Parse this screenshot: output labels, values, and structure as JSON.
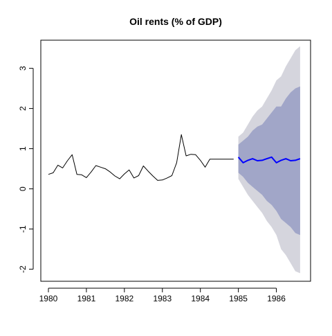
{
  "chart_data": {
    "type": "line",
    "title": "Oil rents (% of GDP)",
    "xlabel": "",
    "ylabel": "",
    "xlim": [
      1979.8,
      1986.9
    ],
    "ylim": [
      -2.3,
      3.7
    ],
    "grid": false,
    "x_ticks": [
      1980,
      1981,
      1982,
      1983,
      1984,
      1985,
      1986
    ],
    "x_tick_labels": [
      "1980",
      "1981",
      "1982",
      "1983",
      "1984",
      "1985",
      "1986"
    ],
    "y_ticks": [
      -2,
      -1,
      0,
      1,
      2,
      3
    ],
    "y_tick_labels": [
      "-2",
      "-1",
      "0",
      "1",
      "2",
      "3"
    ],
    "series": [
      {
        "role": "history",
        "color": "#000000",
        "x": [
          1980.0,
          1980.125,
          1980.25,
          1980.375,
          1980.5,
          1980.625,
          1980.75,
          1980.875,
          1981.0,
          1981.125,
          1981.25,
          1981.375,
          1981.5,
          1981.625,
          1981.75,
          1981.875,
          1982.0,
          1982.125,
          1982.25,
          1982.375,
          1982.5,
          1982.625,
          1982.75,
          1982.875,
          1983.0,
          1983.125,
          1983.25,
          1983.375,
          1983.5,
          1983.625,
          1983.75,
          1983.875,
          1984.0,
          1984.125,
          1984.25,
          1984.375,
          1984.5,
          1984.625,
          1984.75,
          1984.875
        ],
        "values": [
          0.36,
          0.4,
          0.59,
          0.52,
          0.7,
          0.85,
          0.36,
          0.35,
          0.28,
          0.42,
          0.58,
          0.54,
          0.5,
          0.42,
          0.32,
          0.25,
          0.37,
          0.47,
          0.27,
          0.33,
          0.57,
          0.44,
          0.32,
          0.21,
          0.22,
          0.27,
          0.33,
          0.65,
          1.35,
          0.82,
          0.86,
          0.85,
          0.71,
          0.54,
          0.74,
          0.74,
          0.74,
          0.74,
          0.74,
          0.74
        ]
      },
      {
        "role": "forecast",
        "color": "#0000ff",
        "x": [
          1985.0,
          1985.125,
          1985.25,
          1985.375,
          1985.5,
          1985.625,
          1985.75,
          1985.875,
          1986.0,
          1986.125,
          1986.25,
          1986.375,
          1986.5,
          1986.625
        ],
        "values": [
          0.79,
          0.65,
          0.71,
          0.75,
          0.7,
          0.71,
          0.75,
          0.79,
          0.65,
          0.71,
          0.75,
          0.7,
          0.71,
          0.75
        ]
      }
    ],
    "intervals": [
      {
        "level": "95",
        "color": "#d5d5dd",
        "x": [
          1985.0,
          1985.125,
          1985.25,
          1985.375,
          1985.5,
          1985.625,
          1985.75,
          1985.875,
          1986.0,
          1986.125,
          1986.25,
          1986.375,
          1986.5,
          1986.625
        ],
        "lower": [
          0.25,
          0.05,
          -0.15,
          -0.3,
          -0.45,
          -0.6,
          -0.8,
          -0.95,
          -1.15,
          -1.5,
          -1.65,
          -1.85,
          -2.05,
          -2.1
        ],
        "upper": [
          1.3,
          1.4,
          1.6,
          1.8,
          1.95,
          2.05,
          2.25,
          2.45,
          2.7,
          2.8,
          3.05,
          3.25,
          3.45,
          3.55
        ]
      },
      {
        "level": "80",
        "color": "#a1a6c8",
        "x": [
          1985.0,
          1985.125,
          1985.25,
          1985.375,
          1985.5,
          1985.625,
          1985.75,
          1985.875,
          1986.0,
          1986.125,
          1986.25,
          1986.375,
          1986.5,
          1986.625
        ],
        "lower": [
          0.4,
          0.3,
          0.15,
          0.05,
          -0.05,
          -0.15,
          -0.3,
          -0.4,
          -0.55,
          -0.75,
          -0.85,
          -0.95,
          -1.1,
          -1.15
        ],
        "upper": [
          1.1,
          1.2,
          1.3,
          1.45,
          1.55,
          1.6,
          1.75,
          1.9,
          2.05,
          2.05,
          2.25,
          2.4,
          2.5,
          2.55
        ]
      }
    ]
  }
}
